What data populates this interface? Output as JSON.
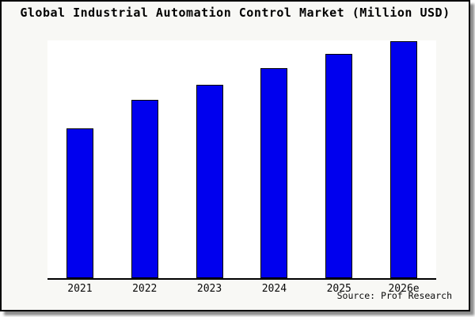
{
  "window": {
    "title": "Global Industrial Automation Control Market (Million USD)"
  },
  "colors": {
    "frame_background": "#f8f8f5",
    "frame_border": "#000000",
    "plot_background": "#ffffff",
    "bar_fill": "#0000ee",
    "bar_border": "#000000",
    "text": "#000000"
  },
  "chart_data": {
    "type": "bar",
    "title": "Global Industrial Automation Control Market (Million USD)",
    "categories": [
      "2021",
      "2022",
      "2023",
      "2024",
      "2025",
      "2026e"
    ],
    "values": [
      63.2,
      75.3,
      81.6,
      88.6,
      94.6,
      100
    ],
    "values_unit": "estimated percent of 2026e bar height (no numeric axis shown in image)",
    "xlabel": "",
    "ylabel": "",
    "y_axis_labels_visible": false,
    "gridlines": false,
    "legend_position": "none",
    "source_note": "Source: Prof Research"
  }
}
